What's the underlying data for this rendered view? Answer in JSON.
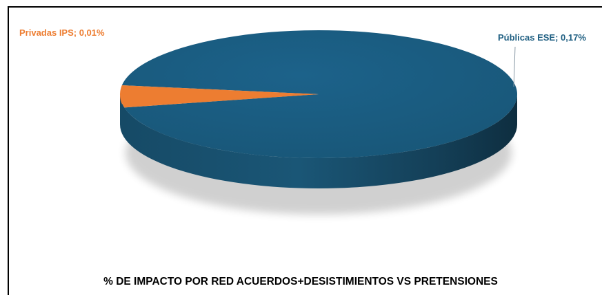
{
  "chart_data": {
    "type": "pie",
    "title": "% DE IMPACTO POR RED ACUERDOS+DESISTIMIENTOS VS PRETENSIONES",
    "categories": [
      "Privadas IPS",
      "Públicas ESE"
    ],
    "values": [
      0.01,
      0.17
    ],
    "value_labels": [
      "0,01%",
      "0,17%"
    ],
    "data_labels": [
      "Privadas IPS; 0,01%",
      "Públicas ESE; 0,17%"
    ],
    "colors": [
      "#ED7D31",
      "#1F5F82"
    ],
    "three_d": true,
    "legend": "none"
  }
}
